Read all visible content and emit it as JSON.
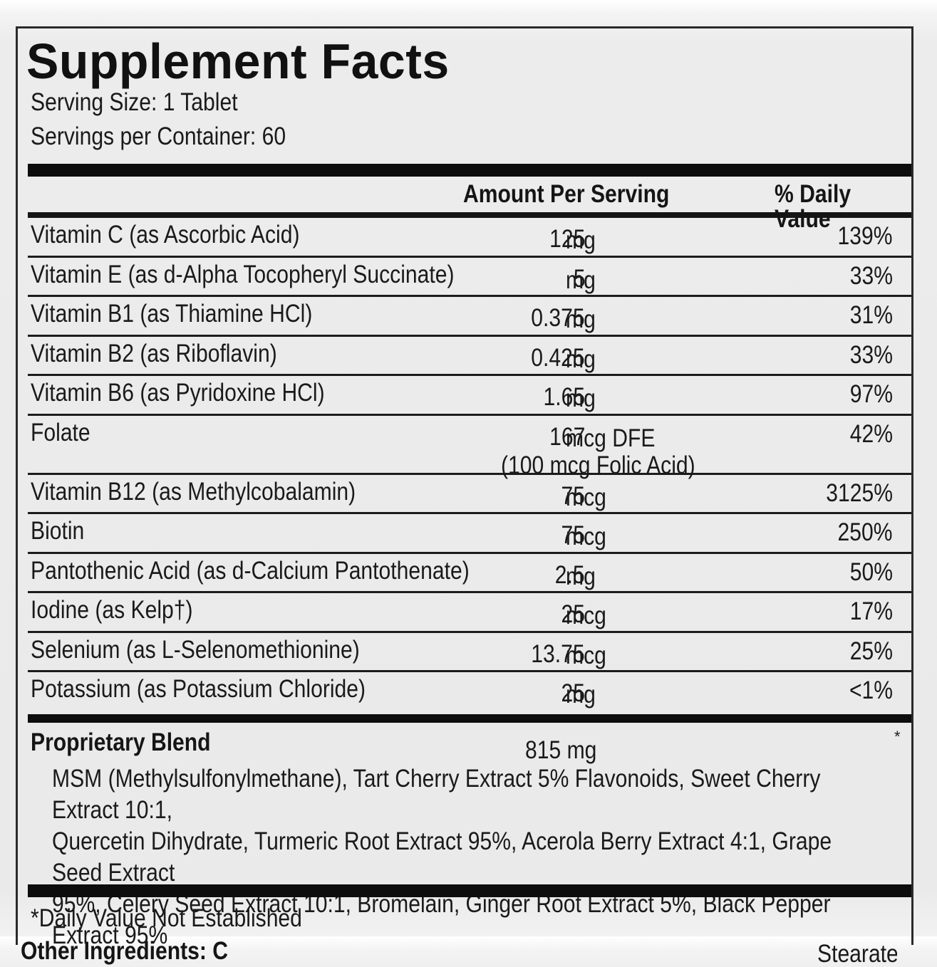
{
  "title": "Supplement Facts",
  "serving_size": "Serving Size: 1 Tablet",
  "servings_per_container": "Servings per Container: 60",
  "headers": {
    "amount": "Amount Per Serving",
    "daily_value": "% Daily Value"
  },
  "nutrients": [
    {
      "name": "Vitamin C (as Ascorbic Acid)",
      "amount": "125",
      "unit": "mg",
      "dv": "139%"
    },
    {
      "name": "Vitamin E (as d-Alpha Tocopheryl Succinate)",
      "amount": "5",
      "unit": "mg",
      "dv": "33%"
    },
    {
      "name": "Vitamin B1 (as Thiamine HCl)",
      "amount": "0.375",
      "unit": "mg",
      "dv": "31%"
    },
    {
      "name": "Vitamin B2 (as Riboflavin)",
      "amount": "0.425",
      "unit": "mg",
      "dv": "33%"
    },
    {
      "name": "Vitamin B6 (as Pyridoxine HCl)",
      "amount": "1.65",
      "unit": "mg",
      "dv": "97%"
    },
    {
      "name": "Folate",
      "amount": "167",
      "unit": "mcg DFE",
      "sub": "(100 mcg Folic Acid)",
      "dv": "42%"
    },
    {
      "name": "Vitamin B12 (as Methylcobalamin)",
      "amount": "75",
      "unit": "mcg",
      "dv": "3125%"
    },
    {
      "name": "Biotin",
      "amount": "75",
      "unit": "mcg",
      "dv": "250%"
    },
    {
      "name": "Pantothenic Acid (as d-Calcium Pantothenate)",
      "amount": "2.5",
      "unit": "mg",
      "dv": "50%"
    },
    {
      "name": "Iodine (as Kelp†)",
      "amount": "25",
      "unit": "mcg",
      "dv": "17%"
    },
    {
      "name": "Selenium (as L-Selenomethionine)",
      "amount": "13.75",
      "unit": "mcg",
      "dv": "25%"
    },
    {
      "name": "Potassium (as Potassium Chloride)",
      "amount": "25",
      "unit": "mg",
      "dv": "<1%"
    }
  ],
  "blend": {
    "name": "Proprietary Blend",
    "amount": "815 mg",
    "dv": "*",
    "ingredients": [
      "MSM (Methylsulfonylmethane), Tart Cherry Extract 5% Flavonoids, Sweet Cherry Extract 10:1,",
      "Quercetin Dihydrate, Turmeric Root Extract 95%, Acerola Berry Extract 4:1, Grape Seed Extract",
      "95%, Celery Seed Extract 10:1, Bromelain, Ginger Root Extract 5%, Black Pepper",
      "Extract 95%"
    ]
  },
  "footnote": "*Daily Value Not Established",
  "other_ingredients_cut": "Other Ingredients: C",
  "other_ingredients_cut_tail": "Stearate"
}
